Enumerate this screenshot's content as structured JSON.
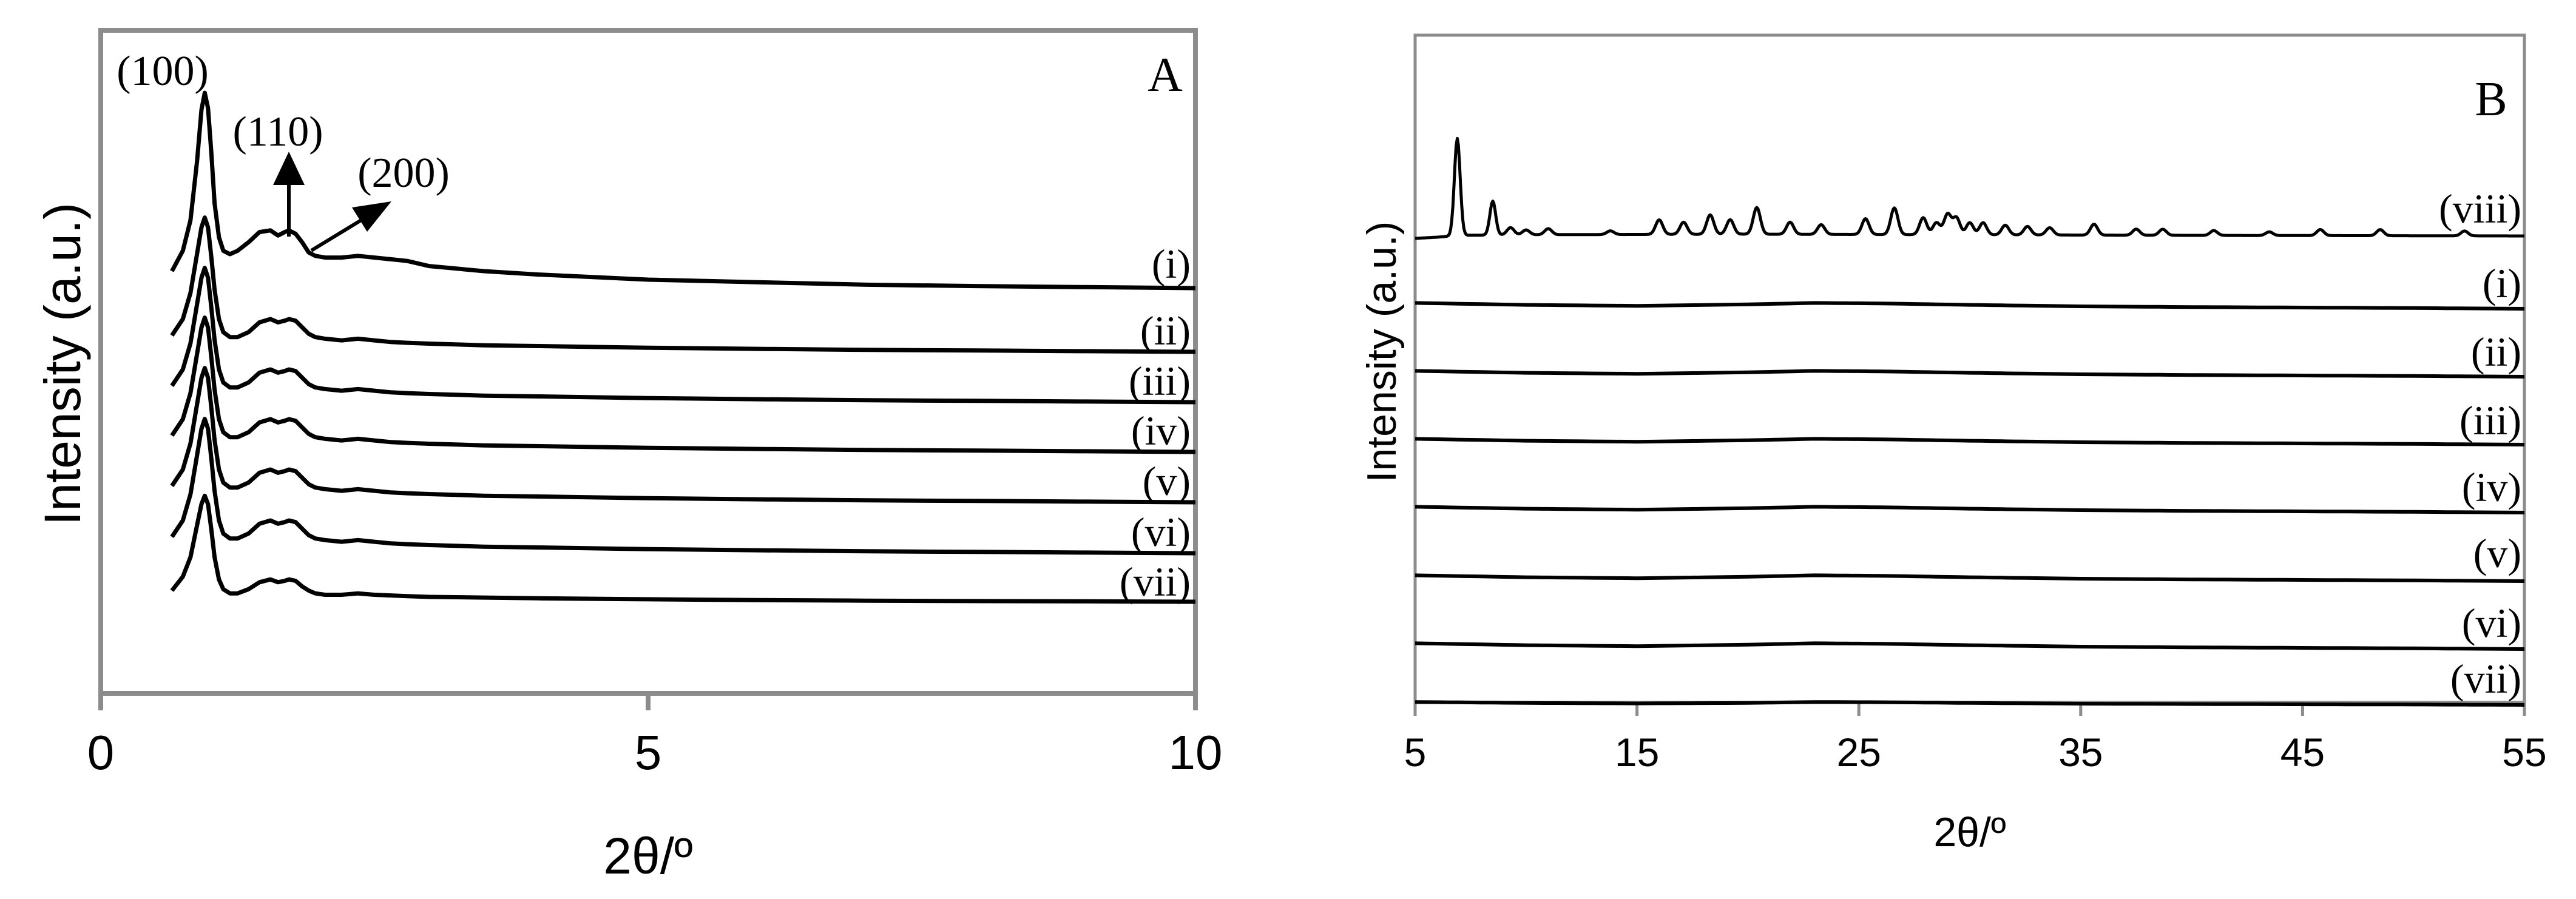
{
  "chart_data": [
    {
      "type": "line",
      "panel_label": "A",
      "xlabel": "2θ/º",
      "ylabel": "Intensity (a.u.)",
      "xlim": [
        0,
        10
      ],
      "xticks": [
        "0",
        "5",
        "10"
      ],
      "y_ticks_shown": false,
      "grid": false,
      "frame_color": "#8c8c8c",
      "line_color": "#000000",
      "x": [
        0.65,
        0.75,
        0.82,
        0.88,
        0.92,
        0.95,
        0.98,
        1.01,
        1.04,
        1.08,
        1.12,
        1.18,
        1.25,
        1.35,
        1.45,
        1.55,
        1.62,
        1.68,
        1.72,
        1.78,
        1.84,
        1.9,
        1.96,
        2.05,
        2.2,
        2.35,
        2.5,
        2.65,
        2.8,
        3.0,
        3.5,
        4.0,
        5.0,
        6.0,
        7.0,
        8.0,
        9.0,
        10.0
      ],
      "series": [
        {
          "name": "(i)",
          "values": [
            0.1,
            0.22,
            0.4,
            0.75,
            1.05,
            1.15,
            1.06,
            0.8,
            0.5,
            0.3,
            0.22,
            0.2,
            0.22,
            0.27,
            0.33,
            0.34,
            0.31,
            0.33,
            0.34,
            0.32,
            0.27,
            0.21,
            0.19,
            0.18,
            0.18,
            0.19,
            0.18,
            0.17,
            0.16,
            0.13,
            0.1,
            0.08,
            0.05,
            0.035,
            0.02,
            0.012,
            0.006,
            0.0
          ]
        },
        {
          "name": "(ii)",
          "values": [
            0.1,
            0.2,
            0.36,
            0.6,
            0.76,
            0.82,
            0.76,
            0.58,
            0.38,
            0.2,
            0.12,
            0.09,
            0.09,
            0.12,
            0.18,
            0.2,
            0.18,
            0.19,
            0.2,
            0.19,
            0.15,
            0.11,
            0.09,
            0.08,
            0.07,
            0.08,
            0.07,
            0.06,
            0.055,
            0.05,
            0.04,
            0.035,
            0.025,
            0.018,
            0.012,
            0.008,
            0.004,
            0.0
          ]
        },
        {
          "name": "(iii)",
          "values": [
            0.1,
            0.2,
            0.36,
            0.6,
            0.76,
            0.82,
            0.76,
            0.58,
            0.38,
            0.2,
            0.12,
            0.09,
            0.09,
            0.12,
            0.18,
            0.2,
            0.18,
            0.19,
            0.2,
            0.19,
            0.15,
            0.11,
            0.09,
            0.08,
            0.07,
            0.08,
            0.07,
            0.06,
            0.055,
            0.05,
            0.04,
            0.035,
            0.025,
            0.018,
            0.012,
            0.008,
            0.004,
            0.0
          ]
        },
        {
          "name": "(iv)",
          "values": [
            0.1,
            0.2,
            0.36,
            0.6,
            0.76,
            0.82,
            0.76,
            0.58,
            0.38,
            0.2,
            0.12,
            0.09,
            0.09,
            0.12,
            0.18,
            0.2,
            0.18,
            0.19,
            0.2,
            0.19,
            0.15,
            0.11,
            0.09,
            0.08,
            0.07,
            0.08,
            0.07,
            0.06,
            0.055,
            0.05,
            0.04,
            0.035,
            0.025,
            0.018,
            0.012,
            0.008,
            0.004,
            0.0
          ]
        },
        {
          "name": "(v)",
          "values": [
            0.1,
            0.2,
            0.36,
            0.6,
            0.76,
            0.82,
            0.76,
            0.58,
            0.38,
            0.2,
            0.12,
            0.09,
            0.09,
            0.12,
            0.18,
            0.2,
            0.18,
            0.19,
            0.2,
            0.19,
            0.15,
            0.11,
            0.09,
            0.08,
            0.07,
            0.08,
            0.07,
            0.06,
            0.055,
            0.05,
            0.04,
            0.035,
            0.025,
            0.018,
            0.012,
            0.008,
            0.004,
            0.0
          ]
        },
        {
          "name": "(vi)",
          "values": [
            0.1,
            0.2,
            0.36,
            0.6,
            0.76,
            0.82,
            0.76,
            0.58,
            0.38,
            0.2,
            0.12,
            0.09,
            0.09,
            0.12,
            0.18,
            0.2,
            0.18,
            0.19,
            0.2,
            0.19,
            0.15,
            0.11,
            0.09,
            0.08,
            0.07,
            0.08,
            0.07,
            0.06,
            0.055,
            0.05,
            0.04,
            0.035,
            0.025,
            0.018,
            0.012,
            0.008,
            0.004,
            0.0
          ]
        },
        {
          "name": "(vii)",
          "values": [
            0.08,
            0.18,
            0.32,
            0.55,
            0.7,
            0.76,
            0.7,
            0.52,
            0.32,
            0.16,
            0.09,
            0.06,
            0.06,
            0.09,
            0.14,
            0.16,
            0.14,
            0.15,
            0.16,
            0.15,
            0.11,
            0.08,
            0.06,
            0.05,
            0.05,
            0.06,
            0.05,
            0.045,
            0.04,
            0.035,
            0.03,
            0.025,
            0.018,
            0.012,
            0.008,
            0.005,
            0.003,
            0.0
          ]
        }
      ],
      "annotations": [
        {
          "text": "(100)",
          "x": 0.95
        },
        {
          "text": "(110)",
          "x": 1.72
        },
        {
          "text": "(200)",
          "x": 2.5
        }
      ]
    },
    {
      "type": "line",
      "panel_label": "B",
      "xlabel": "2θ/º",
      "ylabel": "Intensity (a.u.)",
      "xlim": [
        5,
        55
      ],
      "xticks": [
        "5",
        "15",
        "25",
        "35",
        "45",
        "55"
      ],
      "y_ticks_shown": false,
      "grid": false,
      "frame_color": "#8c8c8c",
      "line_color": "#000000",
      "series": [
        {
          "name": "(viii)",
          "baseline_x": [
            5,
            6,
            7,
            10,
            20,
            30,
            40,
            55
          ],
          "baseline_y": [
            0.0,
            0.01,
            0.025,
            0.03,
            0.035,
            0.03,
            0.025,
            0.02
          ],
          "peaks": [
            [
              6.9,
              0.8
            ],
            [
              8.5,
              0.28
            ],
            [
              9.3,
              0.06
            ],
            [
              10.0,
              0.04
            ],
            [
              11.0,
              0.05
            ],
            [
              13.8,
              0.03
            ],
            [
              16.0,
              0.12
            ],
            [
              17.1,
              0.1
            ],
            [
              18.3,
              0.16
            ],
            [
              19.2,
              0.12
            ],
            [
              20.4,
              0.22
            ],
            [
              21.9,
              0.1
            ],
            [
              23.3,
              0.08
            ],
            [
              25.3,
              0.13
            ],
            [
              26.6,
              0.22
            ],
            [
              27.9,
              0.14
            ],
            [
              28.5,
              0.1
            ],
            [
              29.0,
              0.17
            ],
            [
              29.4,
              0.14
            ],
            [
              30.0,
              0.1
            ],
            [
              30.6,
              0.1
            ],
            [
              31.6,
              0.08
            ],
            [
              32.6,
              0.07
            ],
            [
              33.6,
              0.06
            ],
            [
              35.6,
              0.09
            ],
            [
              37.5,
              0.05
            ],
            [
              38.7,
              0.05
            ],
            [
              41.0,
              0.04
            ],
            [
              43.5,
              0.03
            ],
            [
              45.8,
              0.05
            ],
            [
              48.5,
              0.05
            ],
            [
              52.3,
              0.04
            ]
          ]
        },
        {
          "name": "(i)",
          "x": [
            5,
            10,
            15,
            20,
            23,
            26,
            30,
            35,
            40,
            45,
            50,
            55
          ],
          "values": [
            0.12,
            0.08,
            0.06,
            0.09,
            0.12,
            0.11,
            0.08,
            0.05,
            0.035,
            0.025,
            0.015,
            0.0
          ]
        },
        {
          "name": "(ii)",
          "x": [
            5,
            10,
            15,
            20,
            23,
            26,
            30,
            35,
            40,
            45,
            50,
            55
          ],
          "values": [
            0.12,
            0.08,
            0.06,
            0.09,
            0.12,
            0.11,
            0.08,
            0.05,
            0.035,
            0.025,
            0.015,
            0.0
          ]
        },
        {
          "name": "(iii)",
          "x": [
            5,
            10,
            15,
            20,
            23,
            26,
            30,
            35,
            40,
            45,
            50,
            55
          ],
          "values": [
            0.12,
            0.08,
            0.06,
            0.09,
            0.12,
            0.11,
            0.08,
            0.05,
            0.035,
            0.025,
            0.015,
            0.0
          ]
        },
        {
          "name": "(iv)",
          "x": [
            5,
            10,
            15,
            20,
            23,
            26,
            30,
            35,
            40,
            45,
            50,
            55
          ],
          "values": [
            0.12,
            0.08,
            0.06,
            0.09,
            0.12,
            0.11,
            0.08,
            0.05,
            0.035,
            0.025,
            0.015,
            0.0
          ]
        },
        {
          "name": "(v)",
          "x": [
            5,
            10,
            15,
            20,
            23,
            26,
            30,
            35,
            40,
            45,
            50,
            55
          ],
          "values": [
            0.12,
            0.08,
            0.06,
            0.09,
            0.12,
            0.11,
            0.08,
            0.05,
            0.035,
            0.025,
            0.015,
            0.0
          ]
        },
        {
          "name": "(vi)",
          "x": [
            5,
            10,
            15,
            20,
            23,
            26,
            30,
            35,
            40,
            45,
            50,
            55
          ],
          "values": [
            0.12,
            0.08,
            0.06,
            0.09,
            0.12,
            0.11,
            0.08,
            0.05,
            0.035,
            0.025,
            0.015,
            0.0
          ]
        },
        {
          "name": "(vii)",
          "x": [
            5,
            10,
            15,
            20,
            23,
            26,
            30,
            35,
            40,
            45,
            50,
            55
          ],
          "values": [
            0.06,
            0.04,
            0.03,
            0.04,
            0.06,
            0.055,
            0.04,
            0.025,
            0.018,
            0.012,
            0.008,
            0.0
          ]
        }
      ]
    }
  ]
}
